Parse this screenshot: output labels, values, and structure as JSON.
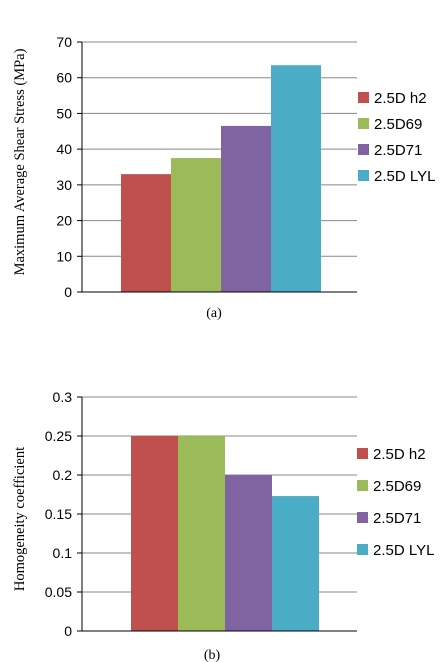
{
  "chart_data": [
    {
      "type": "bar",
      "caption": "(a)",
      "ylabel": "Maximum Average Shear Stress (MPa)",
      "ylim": [
        0,
        70
      ],
      "yticks": [
        "0",
        "10",
        "20",
        "30",
        "40",
        "50",
        "60",
        "70"
      ],
      "grid": true,
      "legend_position": "right",
      "series": [
        {
          "name": "2.5D h2",
          "value": 33,
          "color": "#c0504d"
        },
        {
          "name": "2.5D69",
          "value": 37.5,
          "color": "#9bbb59"
        },
        {
          "name": "2.5D71",
          "value": 46.5,
          "color": "#8064a2"
        },
        {
          "name": "2.5D LYL",
          "value": 63.5,
          "color": "#4bacc6"
        }
      ]
    },
    {
      "type": "bar",
      "caption": "(b)",
      "ylabel": "Homogeneity coefficient",
      "ylim": [
        0,
        0.3
      ],
      "yticks": [
        "0",
        "0.05",
        "0.1",
        "0.15",
        "0.2",
        "0.25",
        "0.3"
      ],
      "grid": true,
      "legend_position": "right",
      "series": [
        {
          "name": "2.5D h2",
          "value": 0.25,
          "color": "#c0504d"
        },
        {
          "name": "2.5D69",
          "value": 0.25,
          "color": "#9bbb59"
        },
        {
          "name": "2.5D71",
          "value": 0.2,
          "color": "#8064a2"
        },
        {
          "name": "2.5D LYL",
          "value": 0.173,
          "color": "#4bacc6"
        }
      ]
    }
  ]
}
